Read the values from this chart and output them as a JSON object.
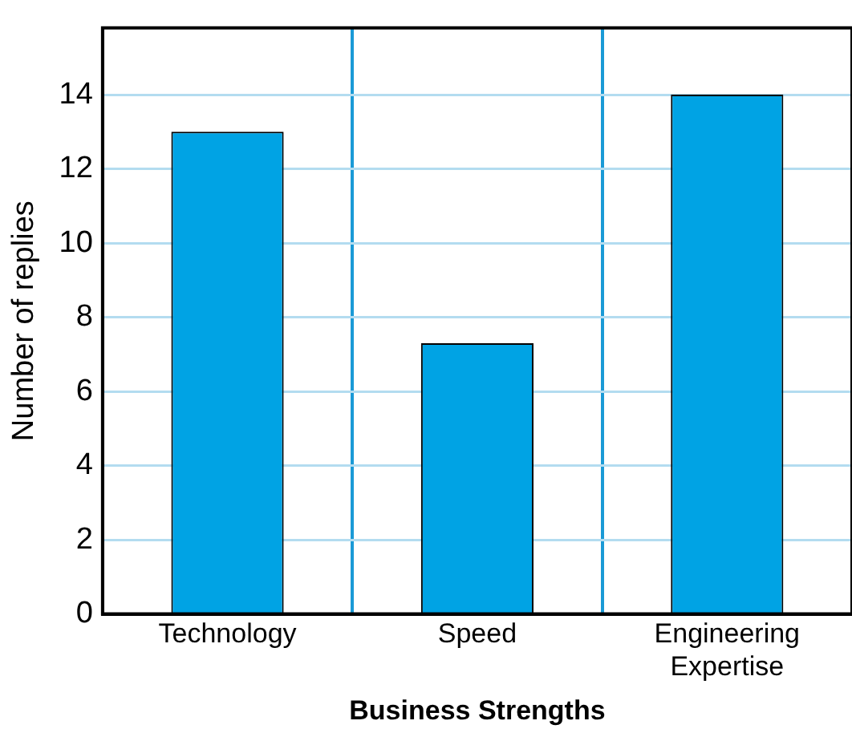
{
  "chart_data": {
    "type": "bar",
    "xlabel": "Business Strengths",
    "ylabel": "Number of replies",
    "categories": [
      "Technology",
      "Speed",
      "Engineering Expertise"
    ],
    "values": [
      13,
      7.3,
      14
    ],
    "color": "#00a3e4",
    "ylim": [
      0,
      15.8
    ],
    "yticks": [
      0,
      2,
      4,
      6,
      8,
      10,
      12,
      14
    ],
    "grid": true
  }
}
